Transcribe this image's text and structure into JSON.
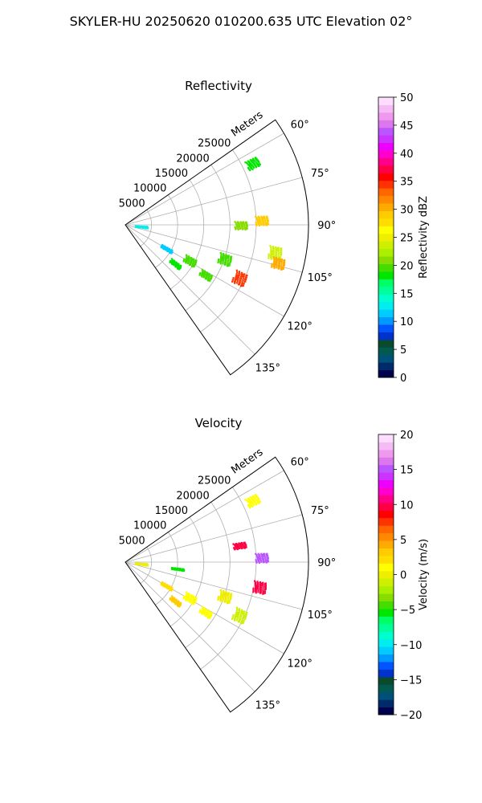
{
  "figure_title": "SKYLER-HU  20250620  010200.635 UTC Elevation 02°",
  "chart_data": [
    {
      "type": "heatmap",
      "title": "Reflectivity",
      "projection": "polar-sector",
      "radial_label": "Meters",
      "range_ticks": [
        "5000",
        "10000",
        "15000",
        "20000",
        "25000"
      ],
      "range_values": [
        5000,
        10000,
        15000,
        20000,
        25000
      ],
      "rmax": 35000,
      "azimuth_ticks": [
        "60°",
        "75°",
        "90°",
        "105°",
        "120°",
        "135°"
      ],
      "azimuth_values": [
        60,
        75,
        90,
        105,
        120,
        135
      ],
      "theta_range": [
        55,
        145
      ],
      "grid": true,
      "colorbar": {
        "label": "Reflectivity dBZ",
        "vmin": 0,
        "vmax": 50,
        "ticks": [
          "0",
          "5",
          "10",
          "15",
          "20",
          "25",
          "30",
          "35",
          "40",
          "45",
          "50"
        ],
        "colors": [
          "#00004d",
          "#002b6b",
          "#00517a",
          "#005a50",
          "#0a4a2e",
          "#0033cc",
          "#0055ff",
          "#0099ff",
          "#00ccff",
          "#00eeee",
          "#00ffcc",
          "#00ff99",
          "#00ff66",
          "#00e600",
          "#44dd00",
          "#88dd00",
          "#aaee00",
          "#ccf000",
          "#eeee00",
          "#ffff00",
          "#ffdd00",
          "#ffcc00",
          "#ffaa00",
          "#ff8800",
          "#ff6600",
          "#ff3300",
          "#ff0000",
          "#ff0044",
          "#ff0088",
          "#ff00cc",
          "#ee00ff",
          "#cc33ff",
          "#bb55ff",
          "#dd77ee",
          "#ee99ee",
          "#f4bbf4",
          "#ffddff"
        ]
      }
    },
    {
      "type": "heatmap",
      "title": "Velocity",
      "projection": "polar-sector",
      "radial_label": "Meters",
      "range_ticks": [
        "5000",
        "10000",
        "15000",
        "20000",
        "25000"
      ],
      "range_values": [
        5000,
        10000,
        15000,
        20000,
        25000
      ],
      "rmax": 35000,
      "azimuth_ticks": [
        "60°",
        "75°",
        "90°",
        "105°",
        "120°",
        "135°"
      ],
      "azimuth_values": [
        60,
        75,
        90,
        105,
        120,
        135
      ],
      "theta_range": [
        55,
        145
      ],
      "grid": true,
      "colorbar": {
        "label": "Velocity (m/s)",
        "vmin": -20,
        "vmax": 20,
        "ticks": [
          "−20",
          "−15",
          "−10",
          "−5",
          "0",
          "5",
          "10",
          "15",
          "20"
        ],
        "colors": [
          "#00004d",
          "#002b6b",
          "#00517a",
          "#005a50",
          "#0a4a2e",
          "#0033cc",
          "#0055ff",
          "#0099ff",
          "#00ccff",
          "#00eeee",
          "#00ffcc",
          "#00ff99",
          "#00ff66",
          "#00e600",
          "#44dd00",
          "#88dd00",
          "#aaee00",
          "#ccf000",
          "#eeee00",
          "#ffff00",
          "#ffdd00",
          "#ffcc00",
          "#ffaa00",
          "#ff8800",
          "#ff6600",
          "#ff3300",
          "#ff0000",
          "#ff0044",
          "#ff0088",
          "#ff00cc",
          "#ee00ff",
          "#cc33ff",
          "#bb55ff",
          "#dd77ee",
          "#ee99ee",
          "#f4bbf4",
          "#ffddff"
        ]
      }
    }
  ]
}
